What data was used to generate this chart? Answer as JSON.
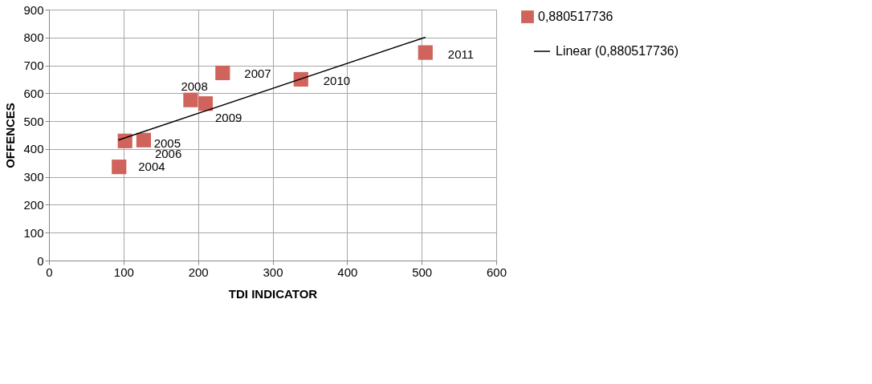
{
  "chart_data": {
    "type": "scatter",
    "xlabel": "TDI INDICATOR",
    "ylabel": "OFFENCES",
    "xlim": [
      0,
      600
    ],
    "xticks": [
      0,
      100,
      200,
      300,
      400,
      500,
      600
    ],
    "ylim": [
      0,
      900
    ],
    "yticks": [
      0,
      100,
      200,
      300,
      400,
      500,
      600,
      700,
      800,
      900
    ],
    "grid": true,
    "legend": "right",
    "series": [
      {
        "name": "0,880517736",
        "color": "#d0635b",
        "marker": "square",
        "x": [
          94,
          102,
          127,
          233,
          190,
          210,
          338,
          505
        ],
        "values": [
          336,
          429,
          432,
          673,
          576,
          563,
          650,
          746
        ]
      },
      {
        "name": "Linear (0,880517736)",
        "type": "line",
        "color": "#000000",
        "line_style": "solid",
        "x": [
          93,
          505
        ],
        "values": [
          432,
          801
        ]
      }
    ],
    "annotations": [
      {
        "text": "2004",
        "x": 94,
        "y": 336
      },
      {
        "text": "2005",
        "x": 102,
        "y": 429
      },
      {
        "text": "2006",
        "x": 127,
        "y": 432
      },
      {
        "text": "2007",
        "x": 233,
        "y": 673
      },
      {
        "text": "2008",
        "x": 190,
        "y": 576
      },
      {
        "text": "2009",
        "x": 210,
        "y": 563
      },
      {
        "text": "2010",
        "x": 338,
        "y": 650
      },
      {
        "text": "2011",
        "x": 505,
        "y": 746
      }
    ]
  }
}
